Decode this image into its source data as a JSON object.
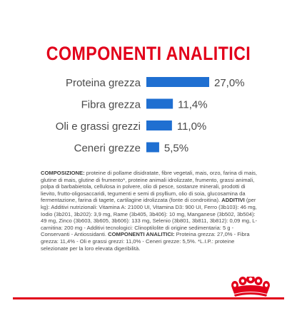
{
  "chart_data": {
    "type": "bar",
    "orientation": "horizontal",
    "title": "COMPONENTI ANALITICI",
    "categories": [
      "Proteina grezza",
      "Fibra grezza",
      "Oli e grassi grezzi",
      "Ceneri grezze"
    ],
    "values": [
      27.0,
      11.4,
      11.0,
      5.5
    ],
    "value_labels": [
      "27,0%",
      "11,4%",
      "11,0%",
      "5,5%"
    ],
    "unit": "%",
    "xlim": [
      0,
      27.0
    ],
    "grid": false,
    "legend": "none",
    "colors": {
      "bar": "#1f6fd1",
      "title": "#e2001a",
      "label": "#4a4a4a"
    }
  },
  "composition": {
    "heading1": "COMPOSIZIONE:",
    "text1": " proteine di pollame disidratate, fibre vegetali, mais, orzo, farina di mais, glutine di mais, glutine di frumento*, proteine animali idrolizzate, frumento, grassi animali, polpa di barbabietola, cellulosa in polvere, olio di pesce, sostanze minerali, prodotti di lievito, frutto-oligosaccaridi, tegumenti e semi di psyllium, olio di soia, glucosamina da fermentazione, farina di tagete, cartilagine idrolizzata (fonte di condroitina). ",
    "heading2": "ADDITIVI",
    "text2": " (per kg): Additivi nutrizionali: Vitamina A: 21000 UI, Vitamina D3: 900 UI, Ferro (3b103): 46 mg, Iodio (3b201, 3b202): 3,9 mg, Rame (3b405, 3b406): 10 mg, Manganese (3b502, 3b504): 49 mg, Zinco (3b603, 3b605, 3b606): 133 mg, Selenio (3b801, 3b811, 3b812): 0,09 mg, L-carnitina: 200 mg - Additivi tecnologici: Clinoptilolite di origine sedimentaria: 5 g - Conservanti - Antiossidanti. ",
    "heading3": "COMPONENTI ANALITICI:",
    "text3": " Proteina grezza: 27,0% - Fibra grezza: 11,4% - Oli e grassi grezzi: 11,0% - Ceneri grezze: 5,5%. *L.I.P.: proteine selezionate per la loro elevata digeribilità."
  },
  "logo": {
    "name": "royal-canin-crown-logo",
    "color": "#e2001a"
  }
}
